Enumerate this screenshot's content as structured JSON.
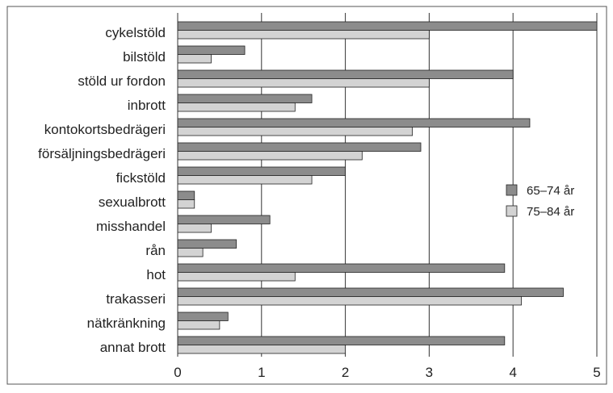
{
  "chart_data": {
    "type": "bar",
    "orientation": "horizontal",
    "categories": [
      "cykelstöld",
      "bilstöld",
      "stöld ur fordon",
      "inbrott",
      "kontokortsbedrägeri",
      "försäljningsbedrägeri",
      "fickstöld",
      "sexualbrott",
      "misshandel",
      "rån",
      "hot",
      "trakasseri",
      "nätkränkning",
      "annat brott"
    ],
    "series": [
      {
        "name": "65–74 år",
        "color": "#8c8c8c",
        "values": [
          5.0,
          0.8,
          4.0,
          1.6,
          4.2,
          2.9,
          2.0,
          0.2,
          1.1,
          0.7,
          3.9,
          4.6,
          0.6,
          3.9
        ]
      },
      {
        "name": "75–84 år",
        "color": "#d3d3d3",
        "values": [
          3.0,
          0.4,
          3.0,
          1.4,
          2.8,
          2.2,
          1.6,
          0.2,
          0.4,
          0.3,
          1.4,
          4.1,
          0.5,
          2.0
        ]
      }
    ],
    "xlim": [
      0,
      5
    ],
    "xticks": [
      "0",
      "1",
      "2",
      "3",
      "4",
      "5"
    ],
    "title": "",
    "xlabel": "",
    "ylabel": "",
    "grid": "vertical",
    "legend": "right"
  }
}
